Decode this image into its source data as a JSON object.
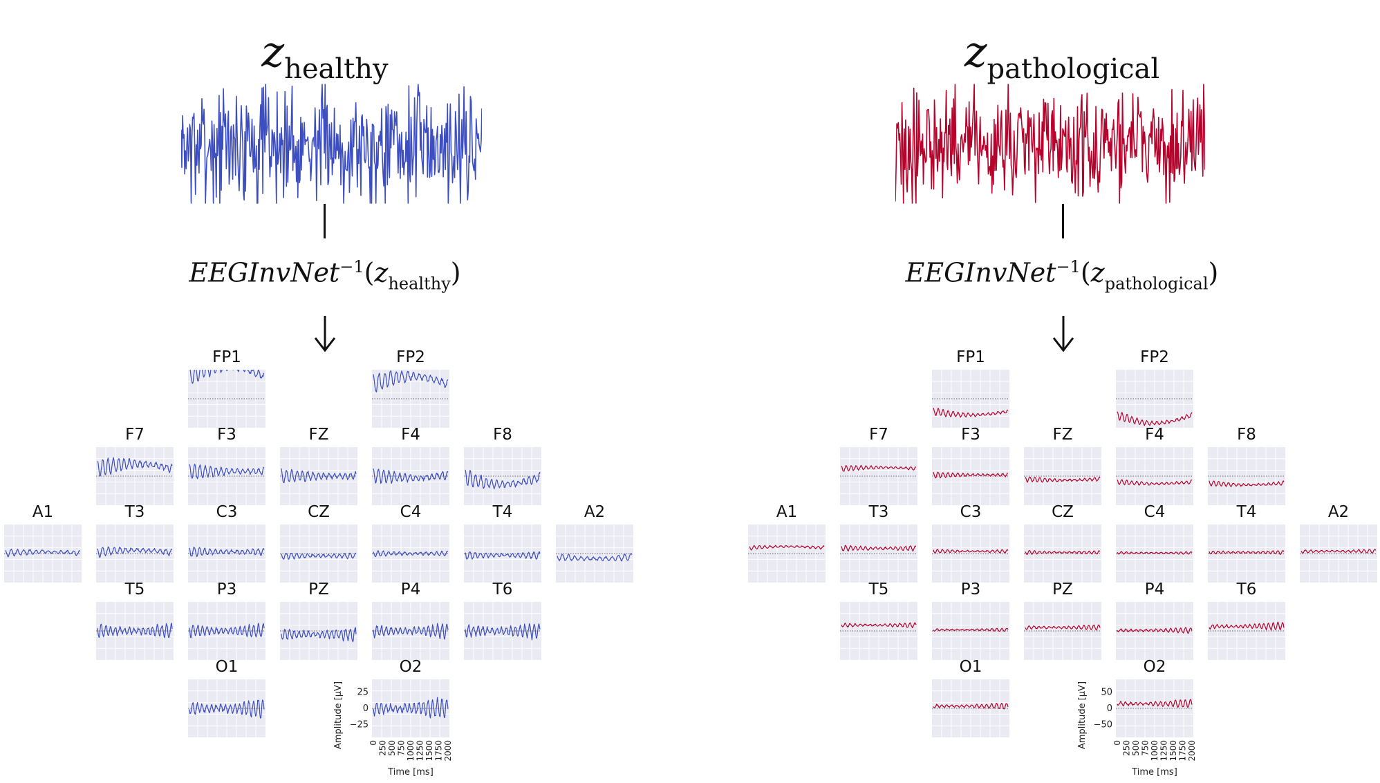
{
  "colors": {
    "healthy": "#3d4ec0",
    "pathological": "#b5032c",
    "plot_bg": "#eaeaf2",
    "grid": "#ffffff",
    "zero_line": "#666666"
  },
  "panels": [
    {
      "id": "healthy",
      "title_z": "z",
      "title_sub": "healthy",
      "formula_name": "EEGInvNet",
      "formula_exp": "−1",
      "formula_open": "(",
      "formula_z": "z",
      "formula_sub": "healthy",
      "formula_close": ")",
      "color_key": "healthy",
      "axis": {
        "ylabel": "Amplitude [µV]",
        "xlabel": "Time [ms]",
        "yticks": [
          "25",
          "0",
          "−25"
        ],
        "xticks": [
          "0",
          "250",
          "500",
          "750",
          "1000",
          "1250",
          "1500",
          "1750",
          "2000"
        ]
      }
    },
    {
      "id": "pathological",
      "title_z": "z",
      "title_sub": "pathological",
      "formula_name": "EEGInvNet",
      "formula_exp": "−1",
      "formula_open": "(",
      "formula_z": "z",
      "formula_sub": "pathological",
      "formula_close": ")",
      "color_key": "pathological",
      "axis": {
        "ylabel": "Amplitude [µV]",
        "xlabel": "Time [ms]",
        "yticks": [
          "50",
          "0",
          "−50"
        ],
        "xticks": [
          "0",
          "250",
          "500",
          "750",
          "1000",
          "1250",
          "1500",
          "1750",
          "2000"
        ]
      }
    }
  ],
  "channels": [
    {
      "name": "FP1",
      "row": 0,
      "col": 2
    },
    {
      "name": "FP2",
      "row": 0,
      "col": 4
    },
    {
      "name": "F7",
      "row": 1,
      "col": 1
    },
    {
      "name": "F3",
      "row": 1,
      "col": 2
    },
    {
      "name": "FZ",
      "row": 1,
      "col": 3
    },
    {
      "name": "F4",
      "row": 1,
      "col": 4
    },
    {
      "name": "F8",
      "row": 1,
      "col": 5
    },
    {
      "name": "A1",
      "row": 2,
      "col": 0
    },
    {
      "name": "T3",
      "row": 2,
      "col": 1
    },
    {
      "name": "C3",
      "row": 2,
      "col": 2
    },
    {
      "name": "CZ",
      "row": 2,
      "col": 3
    },
    {
      "name": "C4",
      "row": 2,
      "col": 4
    },
    {
      "name": "T4",
      "row": 2,
      "col": 5
    },
    {
      "name": "A2",
      "row": 2,
      "col": 6
    },
    {
      "name": "T5",
      "row": 3,
      "col": 1
    },
    {
      "name": "P3",
      "row": 3,
      "col": 2
    },
    {
      "name": "PZ",
      "row": 3,
      "col": 3
    },
    {
      "name": "P4",
      "row": 3,
      "col": 4
    },
    {
      "name": "T6",
      "row": 3,
      "col": 5
    },
    {
      "name": "O1",
      "row": 4,
      "col": 2
    },
    {
      "name": "O2",
      "row": 4,
      "col": 4
    }
  ]
}
